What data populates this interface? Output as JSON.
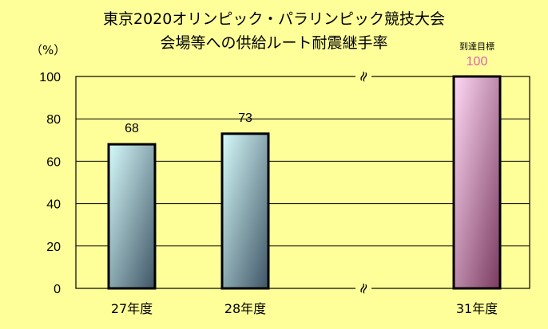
{
  "chart_data": {
    "type": "bar",
    "title_line1": "東京2020オリンピック・パラリンピック競技大会",
    "title_line2": "会場等への供給ルート耐震継手率",
    "ylabel": "（%）",
    "ylim": [
      0,
      100
    ],
    "yticks": [
      0,
      20,
      40,
      60,
      80,
      100
    ],
    "categories": [
      "27年度",
      "28年度",
      "",
      "31年度"
    ],
    "values": [
      68,
      73,
      null,
      100
    ],
    "value_labels": [
      "68",
      "73",
      "",
      "100"
    ],
    "target_label": "到達目標",
    "axis_break_marks": [
      "≈",
      "≈"
    ],
    "grid": true,
    "colors": {
      "background": "#ffff99",
      "bar_top": "#d6fbfb",
      "bar_bottom": "#3f5566",
      "target_top": "#ffd9f5",
      "target_bottom": "#7a3a60",
      "target_value": "#e060b0"
    }
  }
}
